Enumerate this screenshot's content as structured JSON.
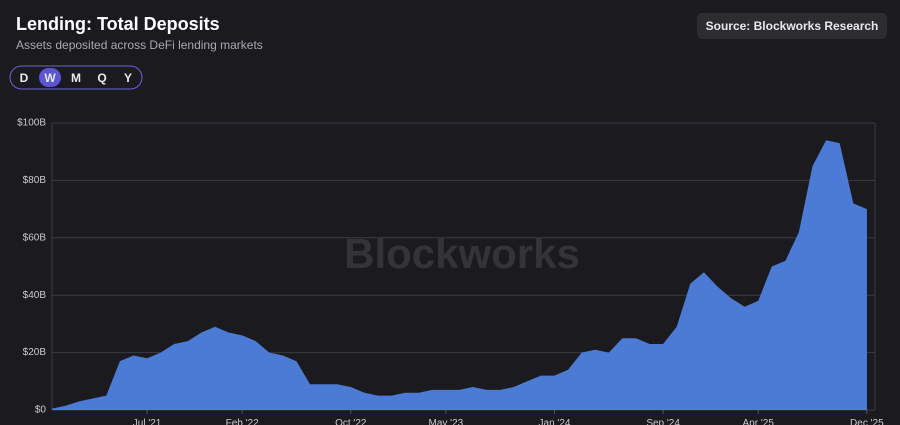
{
  "chart_data": {
    "type": "area",
    "title": "Lending: Total Deposits",
    "subtitle": "Assets deposited across DeFi lending markets",
    "source": "Source: Blockworks Research",
    "watermark": "Blockworks",
    "periods": [
      "D",
      "W",
      "M",
      "Q",
      "Y"
    ],
    "selected_period": "W",
    "color": "#4c7bd6",
    "grid": true,
    "x": [
      "2020-12",
      "2021-01",
      "2021-02",
      "2021-03",
      "2021-04",
      "2021-05",
      "2021-06",
      "2021-07",
      "2021-08",
      "2021-09",
      "2021-10",
      "2021-11",
      "2021-12",
      "2022-01",
      "2022-02",
      "2022-03",
      "2022-04",
      "2022-05",
      "2022-06",
      "2022-07",
      "2022-08",
      "2022-09",
      "2022-10",
      "2022-11",
      "2022-12",
      "2023-01",
      "2023-02",
      "2023-03",
      "2023-04",
      "2023-05",
      "2023-06",
      "2023-07",
      "2023-08",
      "2023-09",
      "2023-10",
      "2023-11",
      "2023-12",
      "2024-01",
      "2024-02",
      "2024-03",
      "2024-04",
      "2024-05",
      "2024-06",
      "2024-07",
      "2024-08",
      "2024-09",
      "2024-10",
      "2024-11",
      "2024-12",
      "2025-01",
      "2025-02",
      "2025-03",
      "2025-04",
      "2025-05",
      "2025-06",
      "2025-07",
      "2025-08",
      "2025-09",
      "2025-10",
      "2025-11",
      "2025-12"
    ],
    "values": [
      0.5,
      1.5,
      3,
      4,
      5,
      17,
      19,
      18,
      20,
      23,
      24,
      27,
      29,
      27,
      26,
      24,
      20,
      19,
      17,
      9,
      9,
      9,
      8,
      6,
      5,
      5,
      6,
      6,
      7,
      7,
      7,
      8,
      7,
      7,
      8,
      10,
      12,
      12,
      14,
      20,
      21,
      20,
      25,
      25,
      23,
      23,
      29,
      44,
      48,
      43,
      39,
      36,
      38,
      50,
      52,
      62,
      85,
      94,
      93,
      72,
      70
    ],
    "xlim": [
      "2020-12",
      "2025-12"
    ],
    "xticks": [
      {
        "value": "2021-07",
        "label": "Jul '21"
      },
      {
        "value": "2022-02",
        "label": "Feb '22"
      },
      {
        "value": "2022-10",
        "label": "Oct '22"
      },
      {
        "value": "2023-05",
        "label": "May '23"
      },
      {
        "value": "2024-01",
        "label": "Jan '24"
      },
      {
        "value": "2024-09",
        "label": "Sep '24"
      },
      {
        "value": "2025-04",
        "label": "Apr '25"
      },
      {
        "value": "2025-12",
        "label": "Dec '25"
      }
    ],
    "ylim": [
      0,
      100
    ],
    "yticks": [
      {
        "value": 0,
        "label": "$0"
      },
      {
        "value": 20,
        "label": "$20B"
      },
      {
        "value": 40,
        "label": "$40B"
      },
      {
        "value": 60,
        "label": "$60B"
      },
      {
        "value": 80,
        "label": "$80B"
      },
      {
        "value": 100,
        "label": "$100B"
      }
    ]
  }
}
